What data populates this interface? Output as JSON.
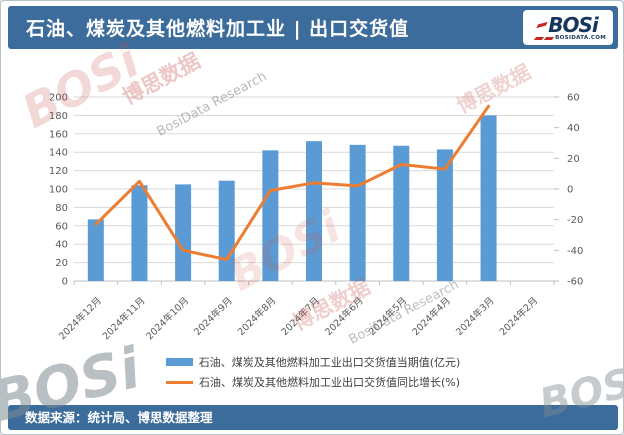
{
  "header": {
    "title": "石油、煤炭及其他燃料加工业 | 出口交货值",
    "logo_text": "BOSi",
    "logo_subtext": "BOSIDATA.COM"
  },
  "chart_data": {
    "type": "combo-bar-line",
    "categories": [
      "2024年12月",
      "2024年11月",
      "2024年10月",
      "2024年9月",
      "2024年8月",
      "2024年7月",
      "2024年6月",
      "2024年5月",
      "2024年4月",
      "2024年3月",
      "2024年2月"
    ],
    "series": [
      {
        "name": "石油、煤炭及其他燃料加工业出口交货值当期值(亿元)",
        "type": "bar",
        "axis": "left",
        "color": "#5B9BD5",
        "values": [
          67,
          104,
          105,
          109,
          142,
          152,
          148,
          147,
          143,
          180,
          null
        ]
      },
      {
        "name": "石油、煤炭及其他燃料加工业出口交货值同比增长(%)",
        "type": "line",
        "axis": "right",
        "color": "#ED7D31",
        "values": [
          -23,
          5,
          -40,
          -46,
          -1,
          4,
          2,
          16,
          13,
          54,
          null
        ]
      }
    ],
    "left_axis": {
      "min": 0,
      "max": 200,
      "step": 20
    },
    "right_axis": {
      "min": -60,
      "max": 60,
      "step": 20
    },
    "grid": true,
    "legend_position": "bottom",
    "grid_color": "#D9D9D9",
    "axis_line_color": "#BFBFBF",
    "axis_text_color": "#595959"
  },
  "footer": {
    "source_text": "数据来源：统计局、博思数据整理"
  },
  "colors": {
    "header_blue": "#3B6C9B",
    "bar_blue": "#5B9BD5",
    "line_orange": "#ED7D31",
    "logo_navy": "#17365D",
    "logo_red": "#C22B23"
  },
  "watermarks": [
    {
      "text": "BOSi"
    },
    {
      "text": "博思数据"
    },
    {
      "text": "BosiData Research"
    },
    {
      "text": "BOSi"
    },
    {
      "text": "博思数据"
    },
    {
      "text": "BosiData Research"
    },
    {
      "text": "BOSi"
    },
    {
      "text": "BOSi"
    },
    {
      "text": "博思数据"
    }
  ]
}
